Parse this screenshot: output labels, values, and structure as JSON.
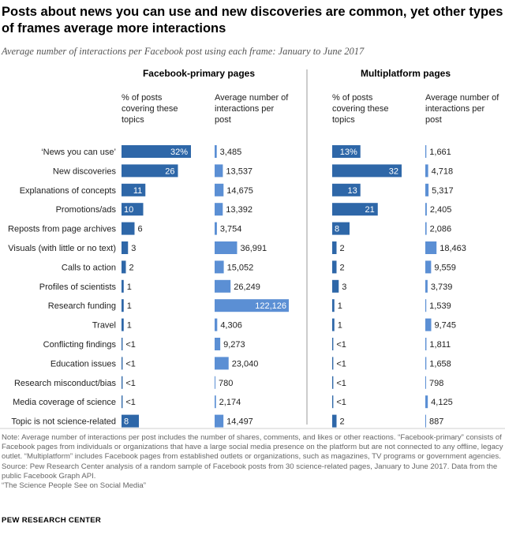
{
  "title": "Posts about news you can use and new discoveries are common, yet other types of frames average more interactions",
  "subtitle": "Average number of interactions per Facebook post using each frame: January to  June 2017",
  "chart_data": {
    "type": "bar",
    "categories": [
      "‘News you can use’",
      "New discoveries",
      "Explanations of concepts",
      "Promotions/ads",
      "Reposts from page archives",
      "Visuals (with little or no text)",
      "Calls to action",
      "Profiles of scientists",
      "Research funding",
      "Travel",
      "Conflicting findings",
      "Education issues",
      "Research misconduct/bias",
      "Media coverage of science",
      "Topic is not science-related"
    ],
    "panels": [
      {
        "name": "Facebook-primary pages",
        "pct_header": "% of posts covering these topics",
        "int_header": "Average number of interactions per post",
        "pct_values": [
          32,
          26,
          11,
          10,
          6,
          3,
          2,
          1,
          1,
          1,
          0.5,
          0.5,
          0.5,
          0.5,
          8
        ],
        "pct_labels": [
          "32%",
          "26",
          "11",
          "10",
          "6",
          "3",
          "2",
          "1",
          "1",
          "1",
          "<1",
          "<1",
          "<1",
          "<1",
          "8"
        ],
        "interactions": [
          3485,
          13537,
          14675,
          13392,
          3754,
          36991,
          15052,
          26249,
          122126,
          4306,
          9273,
          23040,
          780,
          2174,
          14497
        ],
        "interaction_labels": [
          "3,485",
          "13,537",
          "14,675",
          "13,392",
          "3,754",
          "36,991",
          "15,052",
          "26,249",
          "122,126",
          "4,306",
          "9,273",
          "23,040",
          "780",
          "2,174",
          "14,497"
        ]
      },
      {
        "name": "Multiplatform pages",
        "pct_header": "% of posts covering these topics",
        "int_header": "Average number of interactions per post",
        "pct_values": [
          13,
          32,
          13,
          21,
          8,
          2,
          2,
          3,
          1,
          1,
          0.5,
          0.5,
          0.5,
          0.5,
          2
        ],
        "pct_labels": [
          "13%",
          "32",
          "13",
          "21",
          "8",
          "2",
          "2",
          "3",
          "1",
          "1",
          "<1",
          "<1",
          "<1",
          "<1",
          "2"
        ],
        "interactions": [
          1661,
          4718,
          5317,
          2405,
          2086,
          18463,
          9559,
          3739,
          1539,
          9745,
          1811,
          1658,
          798,
          4125,
          887
        ],
        "interaction_labels": [
          "1,661",
          "4,718",
          "5,317",
          "2,405",
          "2,086",
          "18,463",
          "9,559",
          "3,739",
          "1,539",
          "9,745",
          "1,811",
          "1,658",
          "798",
          "4,125",
          "887"
        ]
      }
    ],
    "pct_max": 32,
    "interactions_max": 122126,
    "colors": {
      "pct_bar": "#2e67a8",
      "interaction_bar": "#5b8fd4",
      "label_on_bar": "#ffffff"
    }
  },
  "notes": {
    "note": "Note: Average number of interactions per post includes the number of shares, comments, and likes or other reactions. “Facebook-primary” consists of Facebook pages from individuals or organizations that have a large social media presence on the platform but are not connected to any offline, legacy outlet. “Multiplatform” includes Facebook pages from established outlets or organizations, such as magazines, TV programs or government agencies.",
    "source": "Source: Pew Research Center analysis of a random sample of Facebook posts from 30 science-related pages, January to June 2017. Data from the public Facebook Graph API.",
    "report": "“The Science People See on Social Media”",
    "org": "PEW RESEARCH CENTER"
  }
}
